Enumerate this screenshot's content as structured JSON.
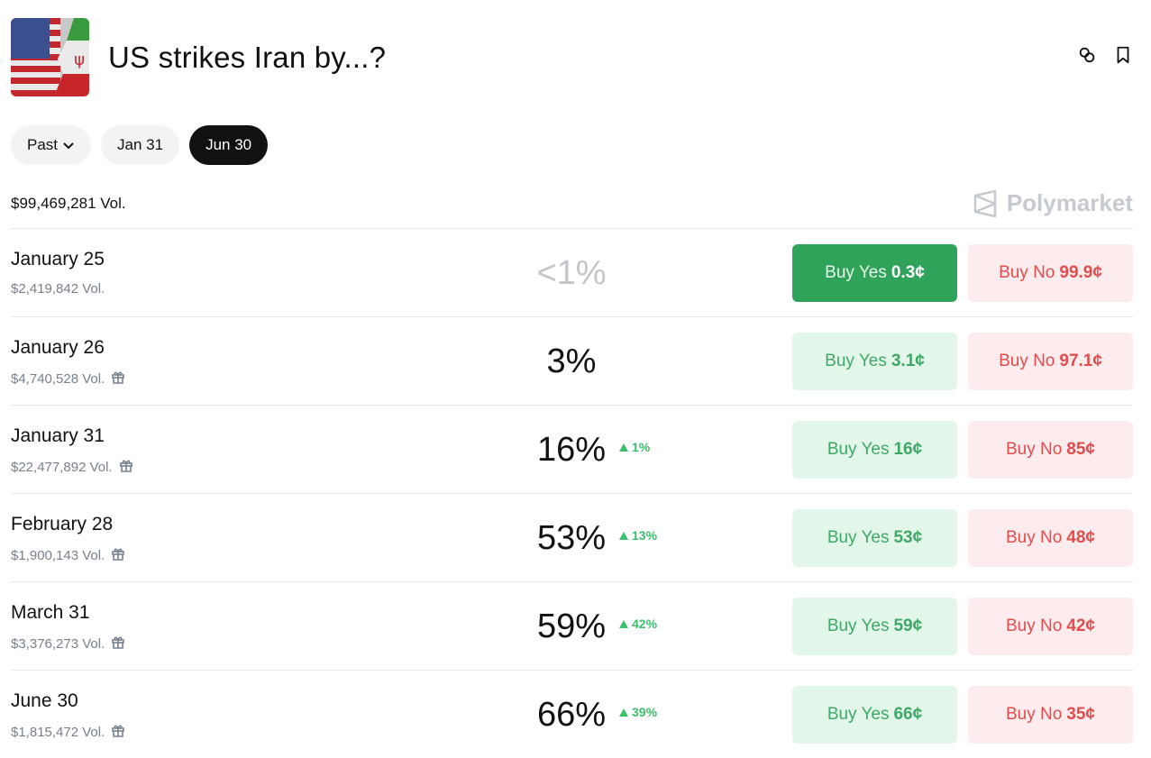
{
  "header": {
    "title": "US strikes Iran by...?",
    "link_icon": "link-icon",
    "bookmark_icon": "bookmark-icon"
  },
  "filters": [
    {
      "label": "Past",
      "dropdown": true
    },
    {
      "label": "Jan 31"
    },
    {
      "label": "Jun 30",
      "active": true
    }
  ],
  "total_volume": "$99,469,281 Vol.",
  "brand": "Polymarket",
  "colors": {
    "yes": "#30a35a",
    "no": "#e24c4c",
    "change_up": "#3bbf6b"
  },
  "markets": [
    {
      "name": "January 25",
      "volume": "$2,419,842 Vol.",
      "gift": false,
      "percent": "<1%",
      "change": "",
      "yes_label": "Buy Yes",
      "yes_price": "0.3¢",
      "no_label": "Buy No",
      "no_price": "99.9¢"
    },
    {
      "name": "January 26",
      "volume": "$4,740,528 Vol.",
      "gift": true,
      "percent": "3%",
      "change": "",
      "yes_label": "Buy Yes",
      "yes_price": "3.1¢",
      "no_label": "Buy No",
      "no_price": "97.1¢"
    },
    {
      "name": "January 31",
      "volume": "$22,477,892 Vol.",
      "gift": true,
      "percent": "16%",
      "change": "1%",
      "yes_label": "Buy Yes",
      "yes_price": "16¢",
      "no_label": "Buy No",
      "no_price": "85¢"
    },
    {
      "name": "February 28",
      "volume": "$1,900,143 Vol.",
      "gift": true,
      "percent": "53%",
      "change": "13%",
      "yes_label": "Buy Yes",
      "yes_price": "53¢",
      "no_label": "Buy No",
      "no_price": "48¢"
    },
    {
      "name": "March 31",
      "volume": "$3,376,273 Vol.",
      "gift": true,
      "percent": "59%",
      "change": "42%",
      "yes_label": "Buy Yes",
      "yes_price": "59¢",
      "no_label": "Buy No",
      "no_price": "42¢"
    },
    {
      "name": "June 30",
      "volume": "$1,815,472 Vol.",
      "gift": true,
      "percent": "66%",
      "change": "39%",
      "yes_label": "Buy Yes",
      "yes_price": "66¢",
      "no_label": "Buy No",
      "no_price": "35¢"
    }
  ]
}
